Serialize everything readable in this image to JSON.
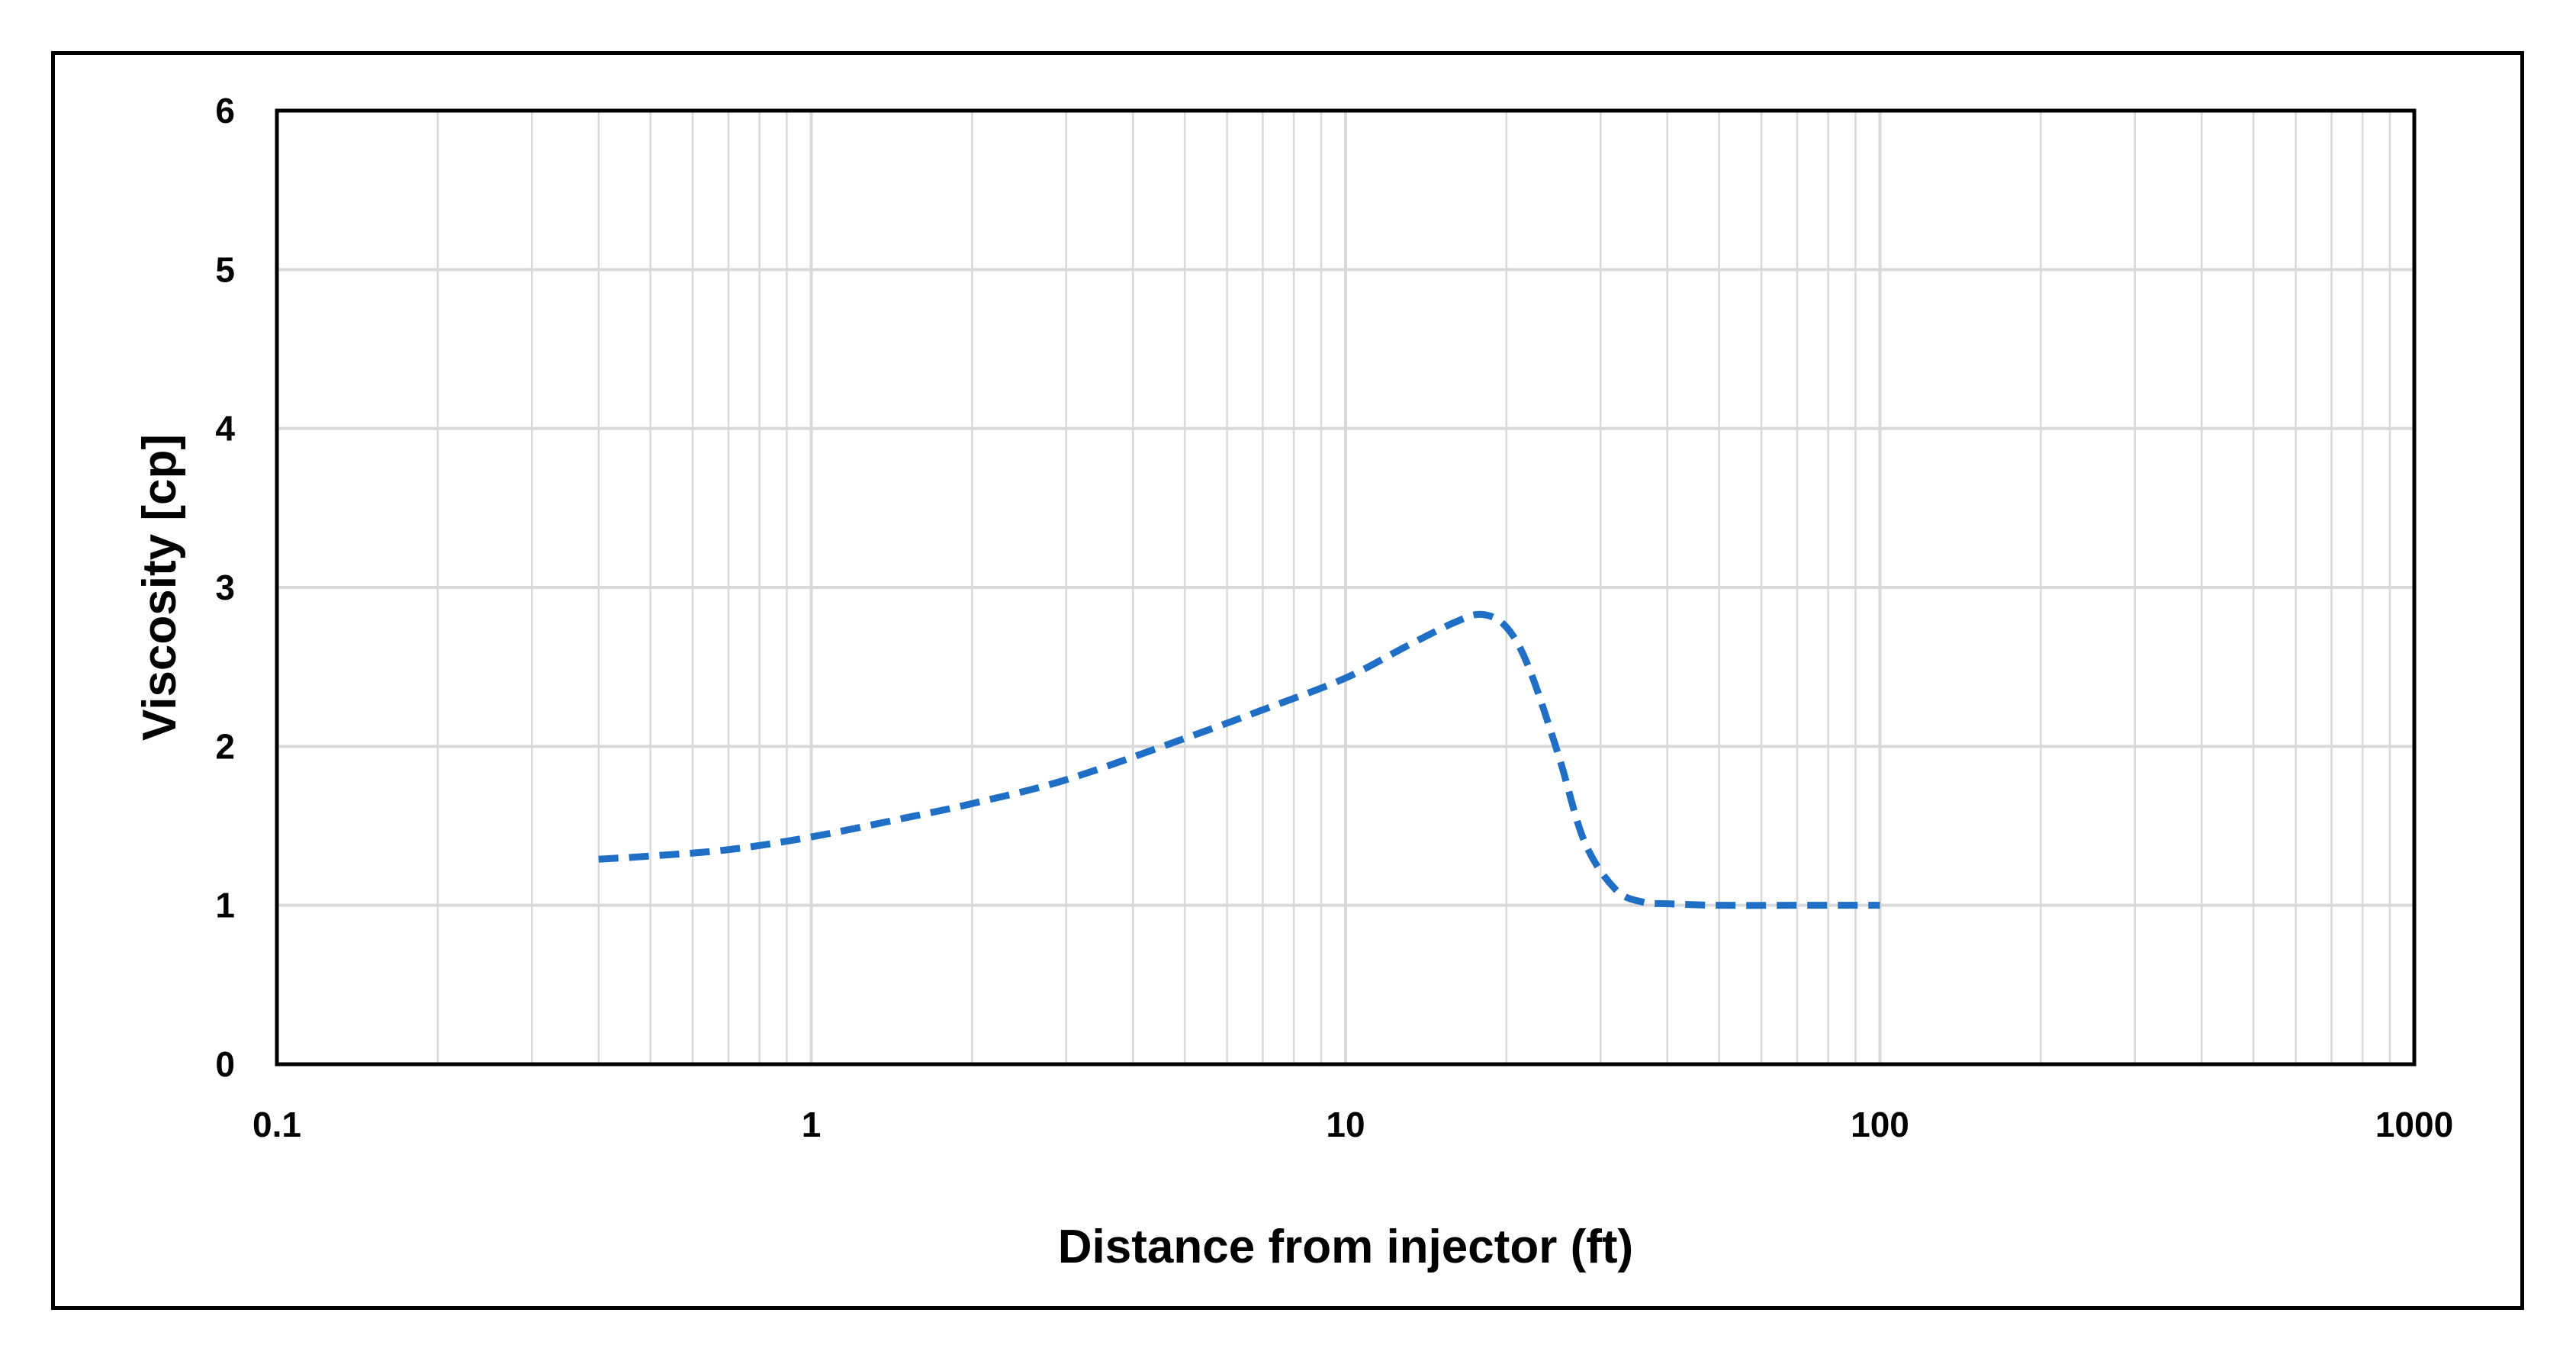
{
  "chart_data": {
    "type": "line",
    "title": "",
    "xlabel": "Distance from injector (ft)",
    "ylabel": "Viscosity [cp]",
    "x_scale": "log",
    "xlim": [
      0.1,
      1000
    ],
    "ylim": [
      0,
      6
    ],
    "x_ticks": [
      "0.1",
      "1",
      "10",
      "100",
      "1000"
    ],
    "y_ticks": [
      "0",
      "1",
      "2",
      "3",
      "4",
      "5",
      "6"
    ],
    "grid": true,
    "legend": "none",
    "series": [
      {
        "color": "#1F6FC6",
        "line_style": "dashed",
        "x": [
          0.4,
          0.5,
          0.7,
          1,
          1.5,
          2,
          3,
          5,
          7,
          10,
          13,
          16,
          18,
          20,
          22,
          25,
          28,
          32,
          36,
          40,
          50,
          70,
          100
        ],
        "y": [
          1.29,
          1.31,
          1.35,
          1.43,
          1.55,
          1.64,
          1.79,
          2.05,
          2.23,
          2.43,
          2.63,
          2.78,
          2.83,
          2.75,
          2.5,
          1.95,
          1.4,
          1.1,
          1.02,
          1.01,
          1.0,
          1.0,
          1.0
        ]
      }
    ]
  },
  "colors": {
    "frame": "#000000",
    "grid": "#D9D9D9",
    "axis": "#000000",
    "series": "#1F6FC6"
  }
}
